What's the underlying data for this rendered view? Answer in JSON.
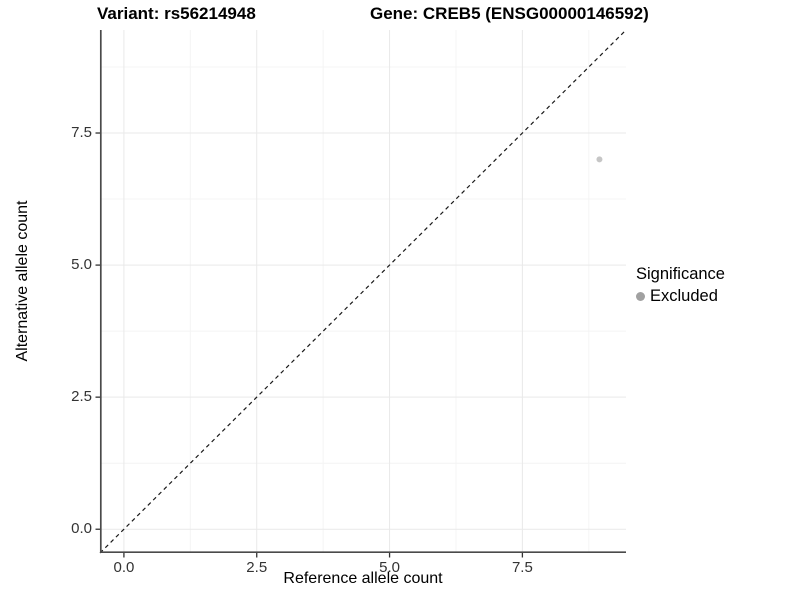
{
  "titles": {
    "variant": "Variant: rs56214948",
    "gene": "Gene: CREB5 (ENSG00000146592)"
  },
  "chart_data": {
    "type": "scatter",
    "xlabel": "Reference allele count",
    "ylabel": "Alternative allele count",
    "xlim": [
      -0.45,
      9.45
    ],
    "ylim": [
      -0.45,
      9.45
    ],
    "x_ticks": [
      0.0,
      2.5,
      5.0,
      7.5
    ],
    "y_ticks": [
      0.0,
      2.5,
      5.0,
      7.5
    ],
    "x_minor_ticks": [
      1.25,
      3.75,
      6.25,
      8.75
    ],
    "y_minor_ticks": [
      1.25,
      3.75,
      6.25,
      8.75
    ],
    "grid": true,
    "points": [
      {
        "x": 8.95,
        "y": 7.0,
        "series": "Excluded"
      }
    ],
    "identity_line": {
      "style": "dashed",
      "from": [
        -0.45,
        -0.45
      ],
      "to": [
        9.45,
        9.45
      ]
    },
    "legend": {
      "title": "Significance",
      "position": "right",
      "items": [
        {
          "label": "Excluded",
          "color": "#a1a1a1"
        }
      ]
    }
  },
  "colors": {
    "point": "#c6c6c6",
    "legend_key": "#a1a1a1",
    "axis_line": "#4a4a4a",
    "tick_mark": "#333333",
    "tick_label": "#333333",
    "grid_major": "#e9e9e9",
    "grid_minor": "#f4f4f4",
    "identity_line": "#1a1a1a",
    "background": "#ffffff"
  }
}
